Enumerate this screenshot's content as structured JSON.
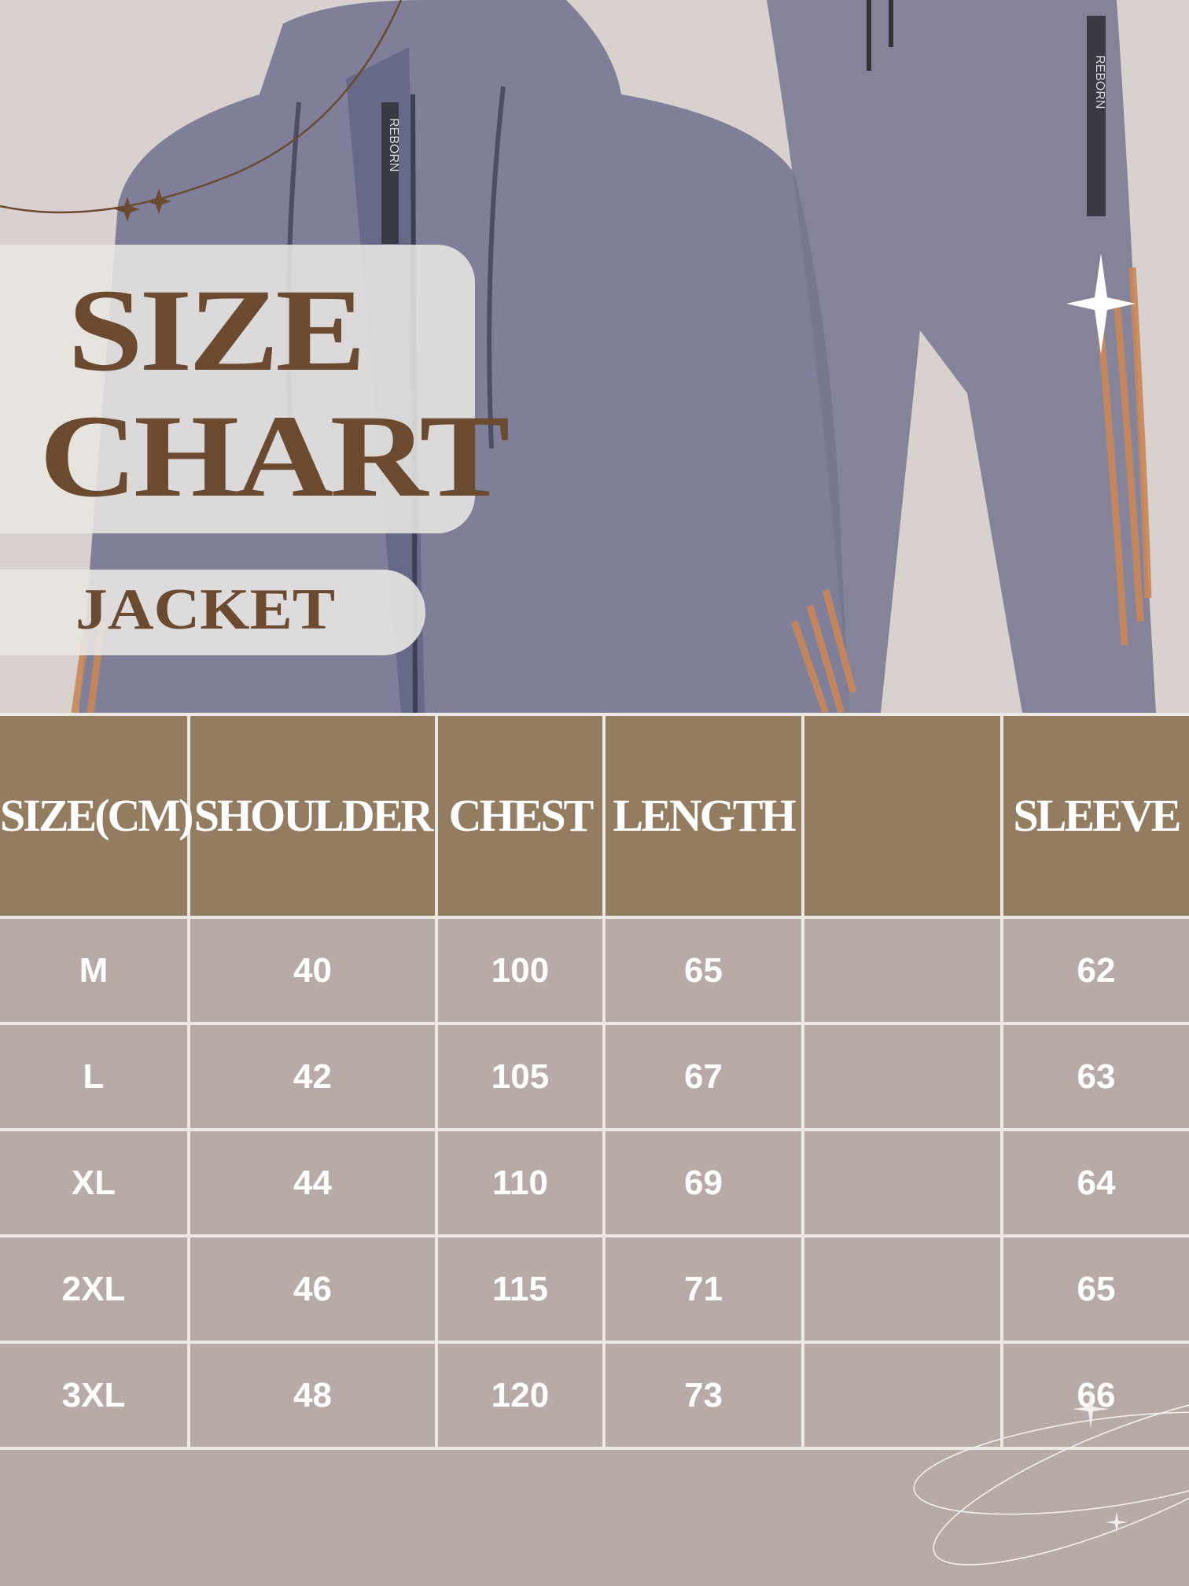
{
  "title": {
    "line1": "SIZE",
    "line2": "CHART"
  },
  "subtitle": "JACKET",
  "photo_text": {
    "zipper_tag": "REBORN",
    "pants_tag": "REBORN"
  },
  "colors": {
    "header_bg": "#947c60",
    "row_bg": "#b8aba7",
    "title_text": "#6b4a30",
    "grid_line": "#ece9e5",
    "garment": "#6e7191",
    "stripe": "#c9875a"
  },
  "table": {
    "headers": [
      "SIZE(CM)",
      "SHOULDER",
      "CHEST",
      "LENGTH",
      "",
      "SLEEVE"
    ],
    "rows": [
      [
        "M",
        "40",
        "100",
        "65",
        "",
        "62"
      ],
      [
        "L",
        "42",
        "105",
        "67",
        "",
        "63"
      ],
      [
        "XL",
        "44",
        "110",
        "69",
        "",
        "64"
      ],
      [
        "2XL",
        "46",
        "115",
        "71",
        "",
        "65"
      ],
      [
        "3XL",
        "48",
        "120",
        "73",
        "",
        "66"
      ]
    ]
  }
}
